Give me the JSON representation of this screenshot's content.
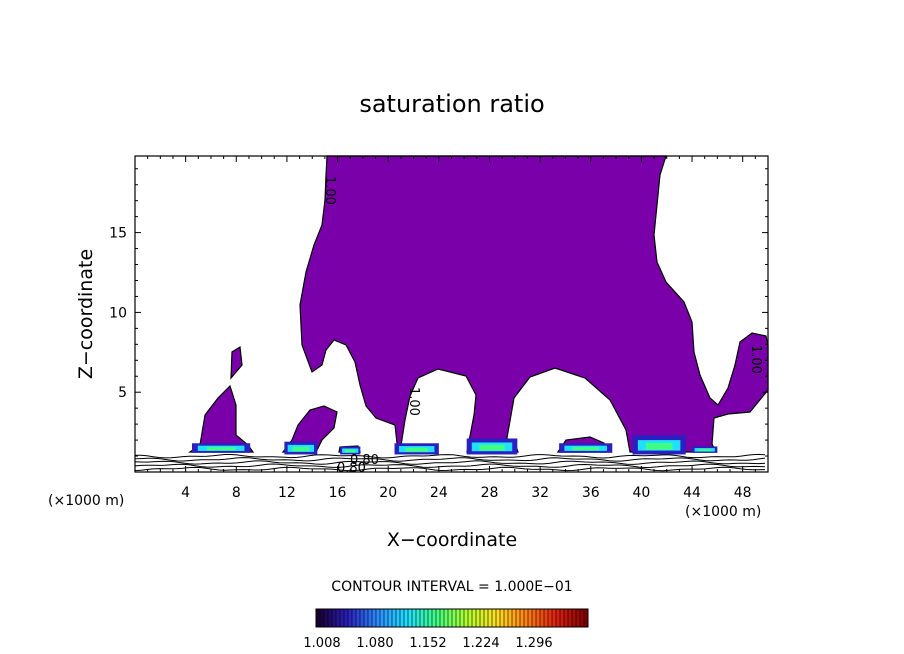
{
  "chart_data": {
    "type": "heatmap",
    "title": "saturation ratio",
    "xlabel": "X−coordinate",
    "ylabel": "Z−coordinate",
    "x_unit_left": "(×1000 m)",
    "x_unit_right": "(×1000 m)",
    "xlim": [
      0,
      50
    ],
    "ylim": [
      0,
      19.8
    ],
    "x_ticks": [
      4,
      8,
      12,
      16,
      20,
      24,
      28,
      32,
      36,
      40,
      44,
      48
    ],
    "y_ticks": [
      5,
      10,
      15
    ],
    "contour_interval": "CONTOUR INTERVAL = 1.000E−01",
    "contour_labels": [
      "1.00",
      "1.00",
      "1.00",
      "0.80",
      "0.80"
    ],
    "colorbar": {
      "labels": [
        "1.008",
        "1.080",
        "1.152",
        "1.224",
        "1.296"
      ],
      "range": [
        0.99,
        1.33
      ],
      "colors": [
        "#1a0030",
        "#2a1fc0",
        "#2a8cff",
        "#20e0ff",
        "#40ff80",
        "#b0ff30",
        "#ffe020",
        "#ff8010",
        "#e02010",
        "#800000"
      ]
    },
    "fill_color": "#7a00aa",
    "high_cells": [
      {
        "x": 4.5,
        "w": 4.6,
        "z": 1.2,
        "h": 0.6
      },
      {
        "x": 11.8,
        "w": 2.6,
        "z": 1.1,
        "h": 0.8
      },
      {
        "x": 16.2,
        "w": 1.6,
        "z": 1.1,
        "h": 0.5
      },
      {
        "x": 20.5,
        "w": 3.5,
        "z": 1.1,
        "h": 0.7
      },
      {
        "x": 26.2,
        "w": 4.0,
        "z": 1.1,
        "h": 1.0
      },
      {
        "x": 33.5,
        "w": 4.2,
        "z": 1.2,
        "h": 0.6
      },
      {
        "x": 39.3,
        "w": 4.2,
        "z": 1.1,
        "h": 1.2
      },
      {
        "x": 44.0,
        "w": 2.0,
        "z": 1.2,
        "h": 0.4
      }
    ]
  }
}
